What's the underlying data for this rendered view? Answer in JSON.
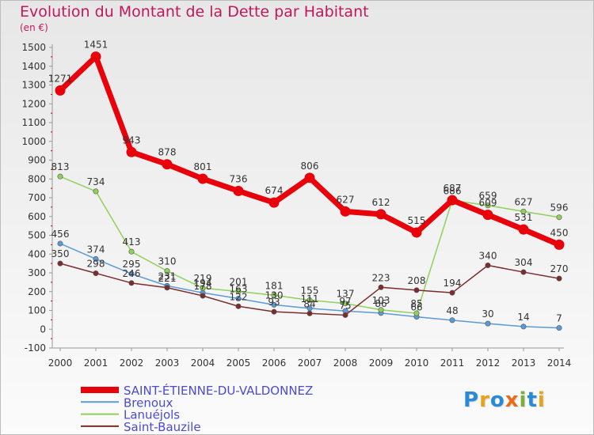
{
  "title": "Evolution du Montant de la Dette par Habitant",
  "unit": "(en €)",
  "logo": {
    "text": "Proxiti",
    "colors": [
      "#2a8ad6",
      "#e8a21b",
      "#2a8ad6",
      "#e86c1b",
      "#7ab03a",
      "#2a8ad6",
      "#e8a21b"
    ]
  },
  "chart_data": {
    "type": "line",
    "categories": [
      "2000",
      "2001",
      "2002",
      "2003",
      "2004",
      "2005",
      "2006",
      "2007",
      "2008",
      "2009",
      "2010",
      "2011",
      "2012",
      "2013",
      "2014"
    ],
    "ylim": [
      -100,
      1500
    ],
    "yticks": [
      -100,
      0,
      100,
      200,
      300,
      400,
      500,
      600,
      700,
      800,
      900,
      1000,
      1100,
      1200,
      1300,
      1400,
      1500
    ],
    "grid": false,
    "legend_position": "bottom-left",
    "series": [
      {
        "name": "SAINT-ÉTIENNE-DU-VALDONNEZ",
        "color": "#e8000b",
        "values": [
          1271,
          1451,
          943,
          878,
          801,
          736,
          674,
          806,
          627,
          612,
          515,
          687,
          609,
          531,
          450
        ]
      },
      {
        "name": "Brenoux",
        "color": "#5b9bd5",
        "values": [
          456,
          374,
          295,
          231,
          194,
          163,
          130,
          111,
          97,
          86,
          66,
          48,
          30,
          14,
          7
        ]
      },
      {
        "name": "Lanuéjols",
        "color": "#8fd15a",
        "values": [
          813,
          734,
          413,
          310,
          219,
          201,
          181,
          155,
          137,
          103,
          85,
          686,
          659,
          627,
          596
        ]
      },
      {
        "name": "Saint-Bauzile",
        "color": "#7b2c2c",
        "values": [
          350,
          298,
          246,
          221,
          178,
          122,
          93,
          84,
          75,
          223,
          208,
          194,
          340,
          304,
          270
        ]
      }
    ]
  }
}
